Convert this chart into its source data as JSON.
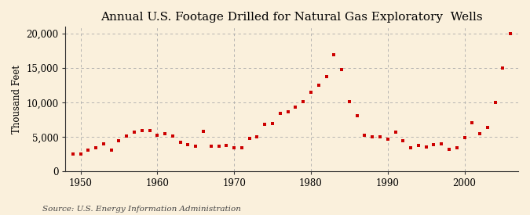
{
  "title": "Annual U.S. Footage Drilled for Natural Gas Exploratory  Wells",
  "ylabel": "Thousand Feet",
  "source_text": "Source: U.S. Energy Information Administration",
  "bg_color": "#FAF0DC",
  "plot_bg_color": "#FAF0DC",
  "marker_color": "#CC0000",
  "grid_color": "#AAAAAA",
  "years": [
    1949,
    1950,
    1951,
    1952,
    1953,
    1954,
    1955,
    1956,
    1957,
    1958,
    1959,
    1960,
    1961,
    1962,
    1963,
    1964,
    1965,
    1966,
    1967,
    1968,
    1969,
    1970,
    1971,
    1972,
    1973,
    1974,
    1975,
    1976,
    1977,
    1978,
    1979,
    1980,
    1981,
    1982,
    1983,
    1984,
    1985,
    1986,
    1987,
    1988,
    1989,
    1990,
    1991,
    1992,
    1993,
    1994,
    1995,
    1996,
    1997,
    1998,
    1999,
    2000,
    2001,
    2002,
    2003,
    2004,
    2005,
    2006
  ],
  "values": [
    2500,
    2600,
    3100,
    3500,
    4000,
    3100,
    4500,
    5200,
    5700,
    5900,
    6000,
    5300,
    5500,
    5200,
    4200,
    3900,
    3700,
    5800,
    3700,
    3700,
    3800,
    3500,
    3500,
    4800,
    5000,
    6800,
    7000,
    8400,
    8700,
    9300,
    10200,
    11500,
    12500,
    13800,
    17000,
    14800,
    10200,
    8100,
    5300,
    5000,
    5000,
    4700,
    5700,
    4500,
    3500,
    3800,
    3600,
    3900,
    4000,
    3200,
    3500,
    4900,
    7100,
    5500,
    6400,
    10000,
    15000,
    20000
  ],
  "xlim": [
    1948,
    2007
  ],
  "ylim": [
    0,
    21000
  ],
  "yticks": [
    0,
    5000,
    10000,
    15000,
    20000
  ],
  "xticks": [
    1950,
    1960,
    1970,
    1980,
    1990,
    2000
  ],
  "title_fontsize": 11,
  "axis_fontsize": 8.5,
  "source_fontsize": 7.5
}
